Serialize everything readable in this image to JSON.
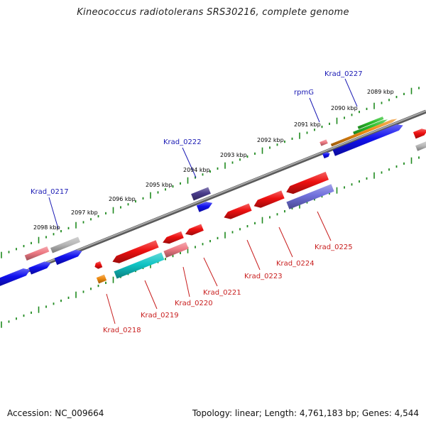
{
  "title": "Kineococcus radiotolerans SRS30216, complete genome",
  "footer": {
    "accession": "Accession: NC_009664",
    "stats": "Topology: linear; Length: 4,761,183 bp; Genes: 4,544"
  },
  "colors": {
    "axis": "#808080",
    "ticks": "#1f8a1f",
    "forward_label": "#1a1ab4",
    "reverse_label": "#c81e1e"
  },
  "kbp_labels": [
    "2089 kbp",
    "2090 kbp",
    "2091 kbp",
    "2092 kbp",
    "2093 kbp",
    "2094 kbp",
    "2095 kbp",
    "2096 kbp",
    "2097 kbp",
    "2098 kbp"
  ],
  "gene_labels": {
    "forward": [
      "Krad_0227",
      "rpmG",
      "Krad_0222",
      "Krad_0217"
    ],
    "reverse": [
      "Krad_0218",
      "Krad_0219",
      "Krad_0220",
      "Krad_0221",
      "Krad_0223",
      "Krad_0224",
      "Krad_0225"
    ]
  },
  "feature_colors": {
    "blue": "#1010ee",
    "red": "#ee1010",
    "pink": "#ee7a84",
    "gray": "#b8b8b8",
    "green": "#2cc02c",
    "orange": "#ee8a10",
    "cyan": "#10c4c4",
    "purple": "#7070dc",
    "darkpurple": "#4a3c8c"
  }
}
